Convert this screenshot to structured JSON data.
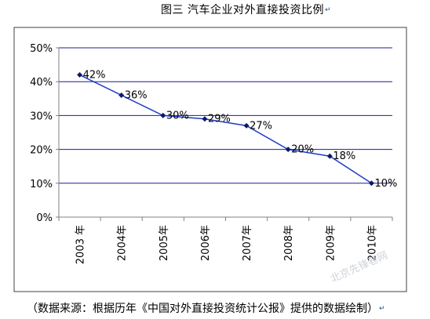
{
  "chart_data": {
    "type": "line",
    "title": "图三  汽车企业对外直接投资比例",
    "categories": [
      "2003 年",
      "2004年",
      "2005年",
      "2006年",
      "2007年",
      "2008年",
      "2009年",
      "2010年"
    ],
    "series": [
      {
        "values": [
          42,
          36,
          30,
          29,
          27,
          20,
          18,
          10
        ]
      }
    ],
    "data_labels": [
      "42%",
      "36%",
      "30%",
      "29%",
      "27%",
      "20%",
      "18%",
      "10%"
    ],
    "y_ticks": [
      0,
      10,
      20,
      30,
      40,
      50
    ],
    "y_tick_labels": [
      "0%",
      "10%",
      "20%",
      "30%",
      "40%",
      "50%"
    ],
    "ylim": [
      0,
      50
    ],
    "grid": true,
    "legend": "none",
    "colors": {
      "line": "#1f3cc8",
      "marker": "#0b1a66",
      "grid": "#1a1a9e",
      "axis": "#808080",
      "plot_border": "#404040"
    }
  },
  "source_note": "（数据来源：根据历年《中国对外直接投资统计公报》提供的数据绘制）",
  "watermark": "北京先锋巷网"
}
